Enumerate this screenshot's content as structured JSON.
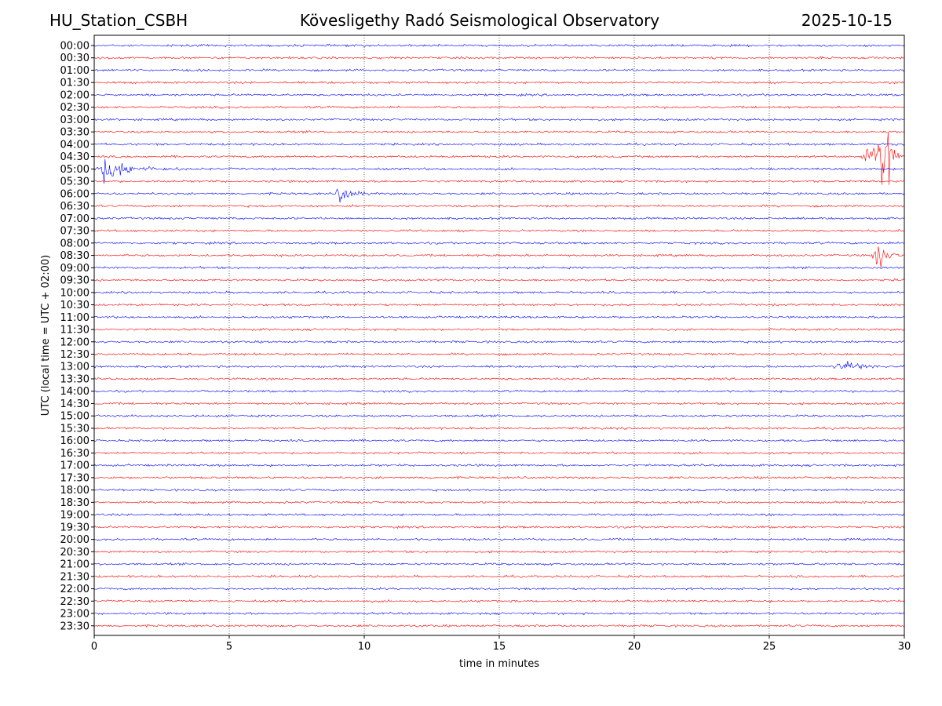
{
  "header": {
    "station": "HU_Station_CSBH",
    "title": "Kövesligethy Radó Seismological Observatory",
    "date": "2025-10-15"
  },
  "chart_data": {
    "type": "line",
    "subtype": "helicorder",
    "xlabel": "time in minutes",
    "ylabel": "UTC (local time = UTC + 02:00)",
    "xlim": [
      0,
      30
    ],
    "xticks": [
      0,
      5,
      10,
      15,
      20,
      25,
      30
    ],
    "grid": "vertical dotted lines at x ticks",
    "trace_colors": [
      "#0000ff",
      "#ff0000"
    ],
    "rows": [
      "00:00",
      "00:30",
      "01:00",
      "01:30",
      "02:00",
      "02:30",
      "03:00",
      "03:30",
      "04:00",
      "04:30",
      "05:00",
      "05:30",
      "06:00",
      "06:30",
      "07:00",
      "07:30",
      "08:00",
      "08:30",
      "09:00",
      "09:30",
      "10:00",
      "10:30",
      "11:00",
      "11:30",
      "12:00",
      "12:30",
      "13:00",
      "13:30",
      "14:00",
      "14:30",
      "15:00",
      "15:30",
      "16:00",
      "16:30",
      "17:00",
      "17:30",
      "18:00",
      "18:30",
      "19:00",
      "19:30",
      "20:00",
      "20:30",
      "21:00",
      "21:30",
      "22:00",
      "22:30",
      "23:00",
      "23:30"
    ],
    "events": [
      {
        "row": "04:30",
        "start_min": 28.3,
        "peak_min": 29.5,
        "end_min": 30,
        "amplitude": 2.2
      },
      {
        "row": "05:00",
        "start_min": 0,
        "peak_min": 0.4,
        "end_min": 3.3,
        "amplitude": 0.7
      },
      {
        "row": "06:00",
        "start_min": 8.9,
        "peak_min": 9.1,
        "end_min": 10.5,
        "amplitude": 0.55
      },
      {
        "row": "08:30",
        "start_min": 28.8,
        "peak_min": 28.95,
        "end_min": 30,
        "amplitude": 1.15
      },
      {
        "row": "13:00",
        "start_min": 27.0,
        "peak_min": 27.9,
        "end_min": 30,
        "amplitude": 0.25
      }
    ]
  }
}
